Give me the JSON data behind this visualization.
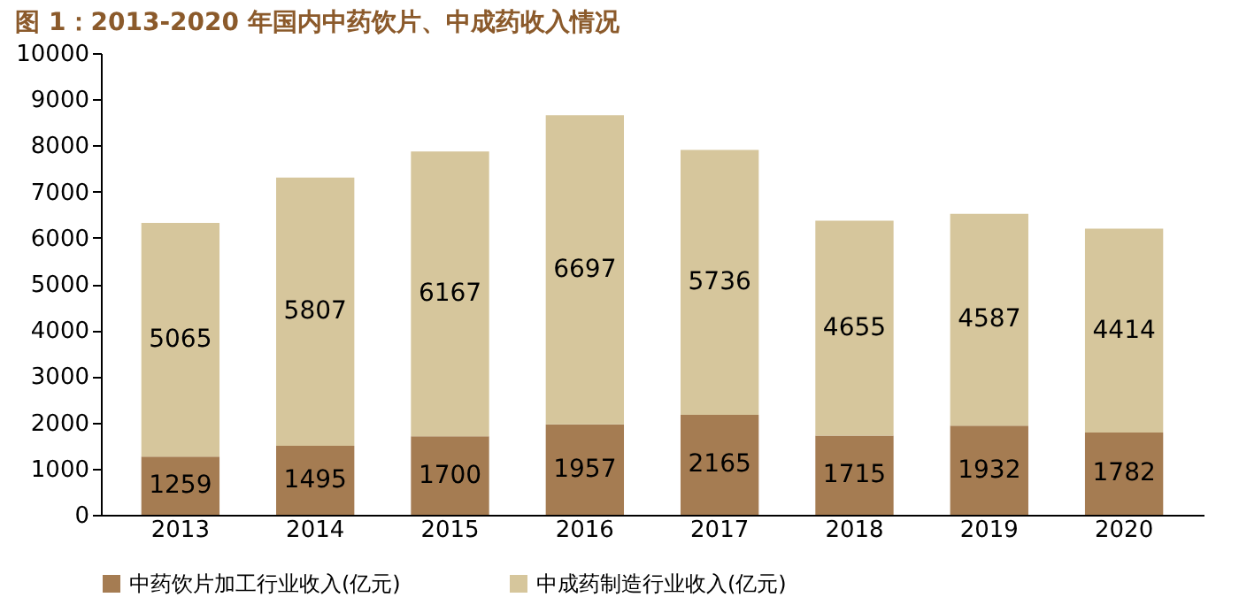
{
  "chart_data": {
    "type": "bar",
    "title": "图 1：2013-2020 年国内中药饮片、中成药收入情况",
    "categories": [
      "2013",
      "2014",
      "2015",
      "2016",
      "2017",
      "2018",
      "2019",
      "2020"
    ],
    "series": [
      {
        "name": "中药饮片加工行业收入(亿元)",
        "color": "#a57c52",
        "values": [
          1259,
          1495,
          1700,
          1957,
          2165,
          1715,
          1932,
          1782
        ]
      },
      {
        "name": "中成药制造行业收入(亿元)",
        "color": "#d6c69c",
        "values": [
          5065,
          5807,
          6167,
          6697,
          5736,
          4655,
          4587,
          4414
        ]
      }
    ],
    "stacked": true,
    "data_labels": true,
    "ylim": [
      0,
      10000
    ],
    "yticks": [
      0,
      1000,
      2000,
      3000,
      4000,
      5000,
      6000,
      7000,
      8000,
      9000,
      10000
    ],
    "grid": false,
    "legend": "bottom"
  }
}
